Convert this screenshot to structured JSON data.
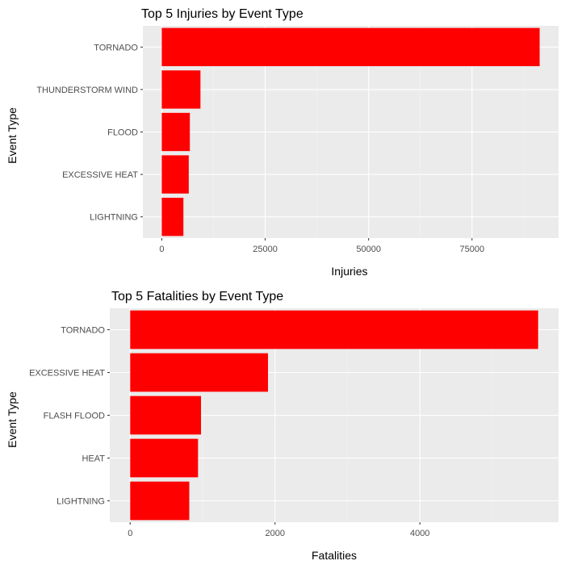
{
  "colors": {
    "bar": "#ff0000",
    "panel": "#ebebeb",
    "grid_major": "#ffffff",
    "grid_minor": "#f5f5f5",
    "tick": "#333333",
    "tick_text": "#4d4d4d"
  },
  "chart_data": [
    {
      "type": "bar",
      "orientation": "horizontal",
      "title": "Top 5 Injuries by Event Type",
      "xlabel": "Injuries",
      "ylabel": "Event Type",
      "categories": [
        "TORNADO",
        "THUNDERSTORM WIND",
        "FLOOD",
        "EXCESSIVE HEAT",
        "LIGHTNING"
      ],
      "values": [
        91346,
        9353,
        6789,
        6525,
        5230
      ],
      "xlim": [
        0,
        91346
      ],
      "xticks": [
        0,
        25000,
        50000,
        75000
      ],
      "xtick_labels": [
        "0",
        "25000",
        "50000",
        "75000"
      ],
      "grid": true,
      "legend": "none"
    },
    {
      "type": "bar",
      "orientation": "horizontal",
      "title": "Top 5 Fatalities by Event Type",
      "xlabel": "Fatalities",
      "ylabel": "Event Type",
      "categories": [
        "TORNADO",
        "EXCESSIVE HEAT",
        "FLASH FLOOD",
        "HEAT",
        "LIGHTNING"
      ],
      "values": [
        5633,
        1903,
        978,
        937,
        816
      ],
      "xlim": [
        0,
        5633
      ],
      "xticks": [
        0,
        2000,
        4000
      ],
      "xtick_labels": [
        "0",
        "2000",
        "4000"
      ],
      "grid": true,
      "legend": "none"
    }
  ]
}
